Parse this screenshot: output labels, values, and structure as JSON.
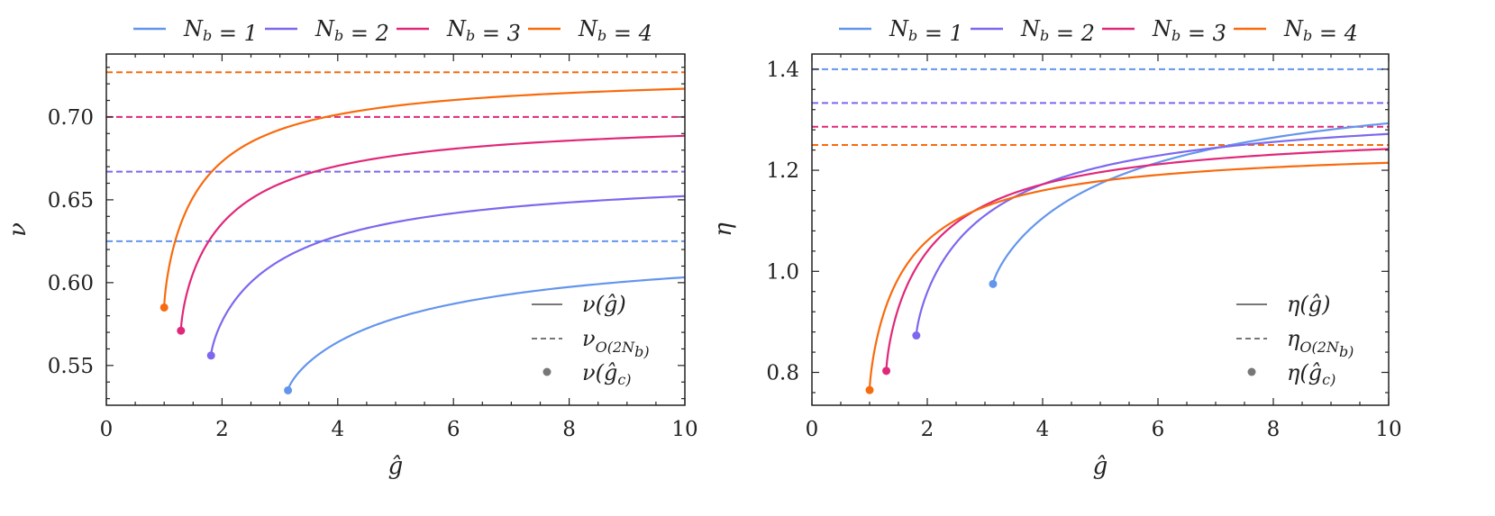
{
  "chart_data": [
    {
      "type": "line",
      "xlabel": "ĝ",
      "ylabel": "ν",
      "xlim": [
        0,
        10
      ],
      "ylim": [
        0.526,
        0.738
      ],
      "xticks": [
        "0",
        "2",
        "4",
        "6",
        "8",
        "10"
      ],
      "yticks": [
        "0.55",
        "0.60",
        "0.65",
        "0.70"
      ],
      "legend_top": [
        "N_b = 1",
        "N_b = 2",
        "N_b = 3",
        "N_b = 4"
      ],
      "legend_style": [
        {
          "main": "ν(ĝ)",
          "sub": ""
        },
        {
          "main": "ν",
          "sub": "O(2N_b)"
        },
        {
          "main": "ν(ĝ_c)",
          "sub": ""
        }
      ],
      "series": [
        {
          "name": "N_b = 1",
          "color": "#6495ed",
          "gc": 3.14,
          "y_c": 0.535,
          "y_inf": 0.625,
          "k": 1.36
        },
        {
          "name": "N_b = 2",
          "color": "#7b68ee",
          "gc": 1.81,
          "y_c": 0.556,
          "y_inf": 0.667,
          "k": 1.4
        },
        {
          "name": "N_b = 3",
          "color": "#e0287a",
          "gc": 1.29,
          "y_c": 0.571,
          "y_inf": 0.7,
          "k": 1.5
        },
        {
          "name": "N_b = 4",
          "color": "#f86a0d",
          "gc": 1.0,
          "y_c": 0.585,
          "y_inf": 0.727,
          "k": 1.45
        }
      ]
    },
    {
      "type": "line",
      "xlabel": "ĝ",
      "ylabel": "η",
      "xlim": [
        0,
        10
      ],
      "ylim": [
        0.735,
        1.43
      ],
      "xticks": [
        "0",
        "2",
        "4",
        "6",
        "8",
        "10"
      ],
      "yticks": [
        "0.8",
        "1.0",
        "1.2",
        "1.4"
      ],
      "legend_top": [
        "N_b = 1",
        "N_b = 2",
        "N_b = 3",
        "N_b = 4"
      ],
      "legend_style": [
        {
          "main": "η(ĝ)",
          "sub": ""
        },
        {
          "main": "η",
          "sub": "O(2N_b)"
        },
        {
          "main": "η(ĝ_c)",
          "sub": ""
        }
      ],
      "series": [
        {
          "name": "N_b = 1",
          "color": "#6495ed",
          "gc": 3.14,
          "y_c": 0.975,
          "y_inf": 1.4,
          "k": 1.3
        },
        {
          "name": "N_b = 2",
          "color": "#7b68ee",
          "gc": 1.81,
          "y_c": 0.873,
          "y_inf": 1.333,
          "k": 1.4
        },
        {
          "name": "N_b = 3",
          "color": "#e0287a",
          "gc": 1.29,
          "y_c": 0.803,
          "y_inf": 1.286,
          "k": 1.45
        },
        {
          "name": "N_b = 4",
          "color": "#f86a0d",
          "gc": 1.0,
          "y_c": 0.765,
          "y_inf": 1.25,
          "k": 1.4
        }
      ]
    }
  ]
}
